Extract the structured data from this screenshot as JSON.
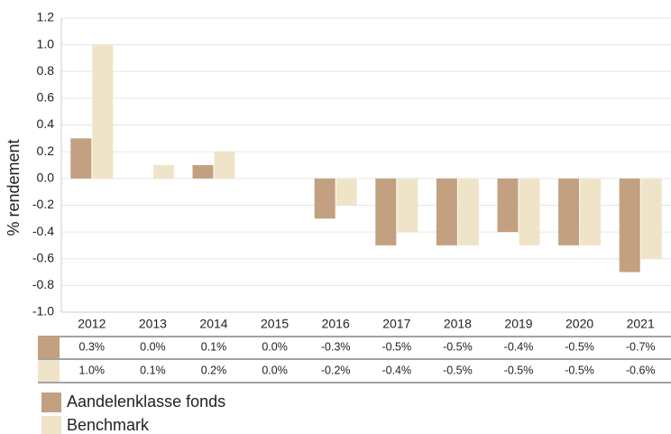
{
  "chart_data": {
    "type": "bar",
    "y_label": "% rendement",
    "categories": [
      "2012",
      "2013",
      "2014",
      "2015",
      "2016",
      "2017",
      "2018",
      "2019",
      "2020",
      "2021"
    ],
    "series": [
      {
        "name": "Aandelenklasse fonds",
        "color": "#c2a080",
        "values": [
          0.3,
          0.0,
          0.1,
          0.0,
          -0.3,
          -0.5,
          -0.5,
          -0.4,
          -0.5,
          -0.7
        ],
        "value_labels": [
          "0.3%",
          "0.0%",
          "0.1%",
          "0.0%",
          "-0.3%",
          "-0.5%",
          "-0.5%",
          "-0.4%",
          "-0.5%",
          "-0.7%"
        ]
      },
      {
        "name": "Benchmark",
        "color": "#f0e4c8",
        "values": [
          1.0,
          0.1,
          0.2,
          0.0,
          -0.2,
          -0.4,
          -0.5,
          -0.5,
          -0.5,
          -0.6
        ],
        "value_labels": [
          "1.0%",
          "0.1%",
          "0.2%",
          "0.0%",
          "-0.2%",
          "-0.4%",
          "-0.5%",
          "-0.5%",
          "-0.5%",
          "-0.6%"
        ]
      }
    ],
    "ylim": [
      -1,
      1.2
    ],
    "yticks": [
      {
        "value": -1,
        "label": "-1.0"
      },
      -0.8,
      -0.6,
      -0.4,
      -0.2,
      {
        "value": 0,
        "label": "0.0"
      },
      0.2,
      0.4,
      0.6,
      0.8,
      {
        "value": 1,
        "label": "1.0"
      },
      1.2
    ],
    "grid": true
  }
}
